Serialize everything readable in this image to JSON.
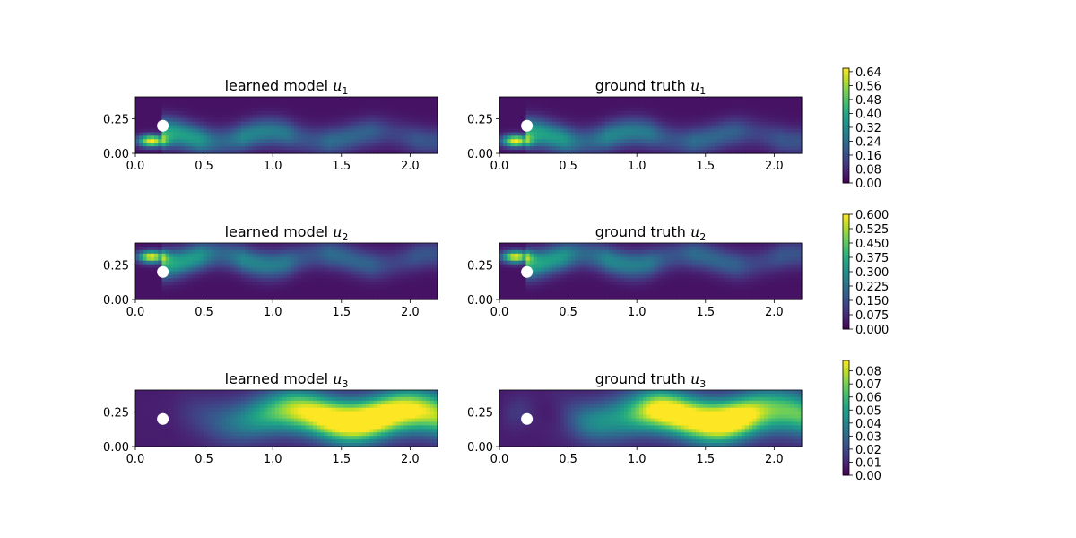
{
  "chart_data": {
    "type": "heatmap",
    "xlim": [
      0,
      2.2
    ],
    "ylim": [
      0,
      0.41
    ],
    "xticks": [
      "0.0",
      "0.5",
      "1.0",
      "1.5",
      "2.0"
    ],
    "xtick_values": [
      0,
      0.5,
      1.0,
      1.5,
      2.0
    ],
    "yticks": [
      "0.00",
      "0.25"
    ],
    "ytick_values": [
      0,
      0.25
    ],
    "obstacle": {
      "cx": 0.2,
      "cy": 0.2,
      "r": 0.05
    },
    "colormap": "viridis",
    "rows": [
      {
        "field": "u1",
        "left_title": {
          "text": "learned model ",
          "var": "u",
          "sub": "1"
        },
        "right_title": {
          "text": "ground truth ",
          "var": "u",
          "sub": "1"
        },
        "colorbar": {
          "min": 0.0,
          "max": 0.66,
          "ticks": [
            "0.00",
            "0.08",
            "0.16",
            "0.24",
            "0.32",
            "0.40",
            "0.48",
            "0.56",
            "0.64"
          ],
          "tick_values": [
            0,
            0.08,
            0.16,
            0.24,
            0.32,
            0.4,
            0.48,
            0.56,
            0.64
          ]
        }
      },
      {
        "field": "u2",
        "left_title": {
          "text": "learned model ",
          "var": "u",
          "sub": "2"
        },
        "right_title": {
          "text": "ground truth ",
          "var": "u",
          "sub": "2"
        },
        "colorbar": {
          "min": 0.0,
          "max": 0.6,
          "ticks": [
            "0.000",
            "0.075",
            "0.150",
            "0.225",
            "0.300",
            "0.375",
            "0.450",
            "0.525",
            "0.600"
          ],
          "tick_values": [
            0,
            0.075,
            0.15,
            0.225,
            0.3,
            0.375,
            0.45,
            0.525,
            0.6
          ]
        }
      },
      {
        "field": "u3",
        "left_title": {
          "text": "learned model ",
          "var": "u",
          "sub": "3"
        },
        "right_title": {
          "text": "ground truth ",
          "var": "u",
          "sub": "3"
        },
        "colorbar": {
          "min": 0.0,
          "max": 0.088,
          "ticks": [
            "0.00",
            "0.01",
            "0.02",
            "0.03",
            "0.04",
            "0.05",
            "0.06",
            "0.07",
            "0.08"
          ],
          "tick_values": [
            0,
            0.01,
            0.02,
            0.03,
            0.04,
            0.05,
            0.06,
            0.07,
            0.08
          ]
        }
      }
    ]
  }
}
